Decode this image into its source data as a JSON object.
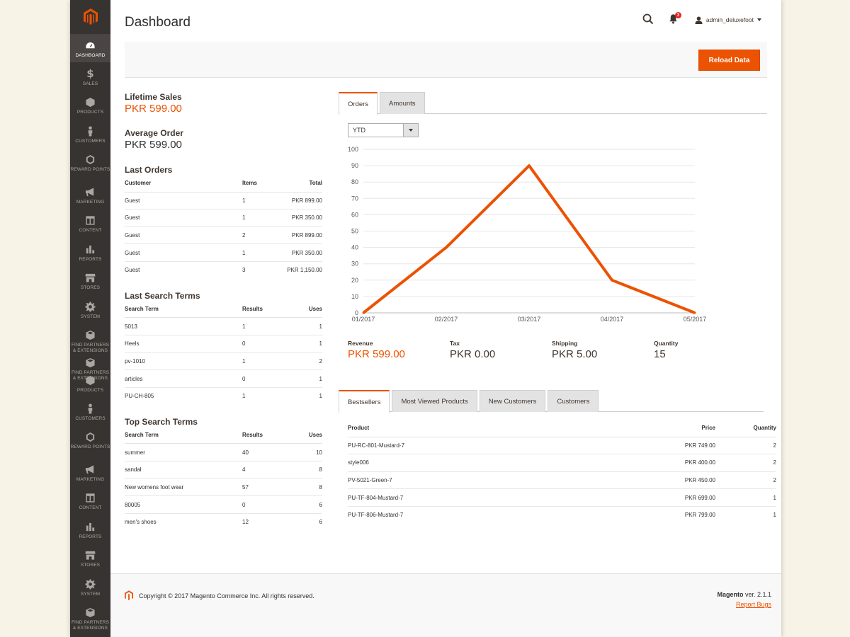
{
  "sidebar": {
    "items": [
      {
        "label": "Dashboard",
        "icon": "dashboard-icon"
      },
      {
        "label": "Sales",
        "icon": "dollar-icon"
      },
      {
        "label": "Products",
        "icon": "cube-icon"
      },
      {
        "label": "Customers",
        "icon": "person-icon"
      },
      {
        "label": "Reward Points",
        "icon": "hexagon-icon"
      },
      {
        "label": "Marketing",
        "icon": "megaphone-icon"
      },
      {
        "label": "Content",
        "icon": "layout-icon"
      },
      {
        "label": "Reports",
        "icon": "bar-chart-icon"
      },
      {
        "label": "Stores",
        "icon": "store-icon"
      },
      {
        "label": "System",
        "icon": "gear-icon"
      },
      {
        "label": "Find Partners & Extensions",
        "icon": "box-icon"
      },
      {
        "label": "Find Partners & Extensions",
        "icon": "box-icon"
      },
      {
        "label": "Products",
        "icon": "cube-icon"
      },
      {
        "label": "Customers",
        "icon": "person-icon"
      },
      {
        "label": "Reward Points",
        "icon": "hexagon-icon"
      },
      {
        "label": "Marketing",
        "icon": "megaphone-icon"
      },
      {
        "label": "Content",
        "icon": "layout-icon"
      },
      {
        "label": "Reports",
        "icon": "bar-chart-icon"
      },
      {
        "label": "Stores",
        "icon": "store-icon"
      },
      {
        "label": "System",
        "icon": "gear-icon"
      },
      {
        "label": "Find Partners & Extensions",
        "icon": "box-icon"
      }
    ]
  },
  "header": {
    "title": "Dashboard",
    "notification_count": "3",
    "username": "admin_deluxefoot"
  },
  "actions": {
    "reload_label": "Reload Data"
  },
  "stats": {
    "lifetime_label": "Lifetime Sales",
    "lifetime_value": "PKR 599.00",
    "average_label": "Average Order",
    "average_value": "PKR 599.00"
  },
  "last_orders": {
    "title": "Last Orders",
    "headers": [
      "Customer",
      "Items",
      "Total"
    ],
    "rows": [
      [
        "Guest",
        "1",
        "PKR 899.00"
      ],
      [
        "Guest",
        "1",
        "PKR 350.00"
      ],
      [
        "Guest",
        "2",
        "PKR 899.00"
      ],
      [
        "Guest",
        "1",
        "PKR 350.00"
      ],
      [
        "Guest",
        "3",
        "PKR 1,150.00"
      ]
    ]
  },
  "last_search": {
    "title": "Last Search Terms",
    "headers": [
      "Search Term",
      "Results",
      "Uses"
    ],
    "rows": [
      [
        "5013",
        "1",
        "1"
      ],
      [
        "Heels",
        "0",
        "1"
      ],
      [
        "pv-1010",
        "1",
        "2"
      ],
      [
        "articles",
        "0",
        "1"
      ],
      [
        "PU-CH-805",
        "1",
        "1"
      ]
    ]
  },
  "top_search": {
    "title": "Top Search Terms",
    "headers": [
      "Search Term",
      "Results",
      "Uses"
    ],
    "rows": [
      [
        "summer",
        "40",
        "10"
      ],
      [
        "sandal",
        "4",
        "8"
      ],
      [
        "New womens foot wear",
        "57",
        "8"
      ],
      [
        "80005",
        "0",
        "6"
      ],
      [
        "men's shoes",
        "12",
        "6"
      ]
    ]
  },
  "chart_tabs": [
    "Orders",
    "Amounts"
  ],
  "period": {
    "selected": "YTD"
  },
  "chart_data": {
    "type": "line",
    "categories": [
      "01/2017",
      "02/2017",
      "03/2017",
      "04/2017",
      "05/2017"
    ],
    "values": [
      0,
      40,
      90,
      20,
      0
    ],
    "ylim": [
      0,
      100
    ],
    "yticks": [
      0,
      10,
      20,
      30,
      40,
      50,
      60,
      70,
      80,
      90,
      100
    ],
    "grid": true,
    "color": "#eb5202"
  },
  "totals": [
    {
      "label": "Revenue",
      "value": "PKR 599.00"
    },
    {
      "label": "Tax",
      "value": "PKR 0.00"
    },
    {
      "label": "Shipping",
      "value": "PKR 5.00"
    },
    {
      "label": "Quantity",
      "value": "15"
    }
  ],
  "product_tabs": [
    "Bestsellers",
    "Most Viewed Products",
    "New Customers",
    "Customers"
  ],
  "bestsellers": {
    "headers": [
      "Product",
      "Price",
      "Quantity"
    ],
    "rows": [
      [
        "PU-RC-801-Mustard-7",
        "PKR 749.00",
        "2"
      ],
      [
        "style006",
        "PKR 400.00",
        "2"
      ],
      [
        "PV-5021-Green-7",
        "PKR 450.00",
        "2"
      ],
      [
        "PU-TF-804-Mustard-7",
        "PKR 699.00",
        "1"
      ],
      [
        "PU-TF-806-Mustard-7",
        "PKR 799.00",
        "1"
      ]
    ]
  },
  "footer": {
    "copyright": "Copyright © 2017 Magento Commerce Inc. All rights reserved.",
    "brand": "Magento",
    "version": " ver. 2.1.1",
    "report_bugs": "Report Bugs"
  },
  "colors": {
    "accent": "#eb5202",
    "sidebar": "#373330"
  }
}
